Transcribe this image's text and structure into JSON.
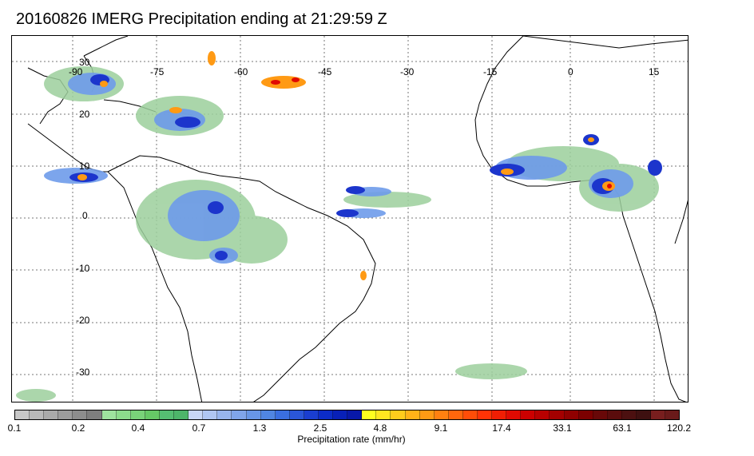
{
  "title": "20160826 IMERG Precipitation ending at 21:29:59 Z",
  "map": {
    "longitude_labels": [
      "-90",
      "-75",
      "-60",
      "-45",
      "-30",
      "-15",
      "0",
      "15"
    ],
    "latitude_labels": [
      "30",
      "20",
      "10",
      "0",
      "-10",
      "-20",
      "-30"
    ],
    "gridlines": "dotted"
  },
  "colorbar": {
    "tick_labels": [
      "0.1",
      "0.2",
      "0.4",
      "0.7",
      "1.3",
      "2.5",
      "4.8",
      "9.1",
      "17.4",
      "33.1",
      "63.1",
      "120.2"
    ],
    "label": "Precipitation rate (mm/hr)",
    "colors": [
      "#c8c8c8",
      "#b9b9b9",
      "#aaaaaa",
      "#9c9c9c",
      "#8d8d8d",
      "#7e7e7e",
      "#9ee39e",
      "#8cdc8c",
      "#79d379",
      "#66c966",
      "#55be72",
      "#4db56a",
      "#c8d6f6",
      "#b0c6f2",
      "#98b5ee",
      "#80a5ea",
      "#6896e6",
      "#5086e2",
      "#3a6fe0",
      "#2a56d9",
      "#1a3ed0",
      "#0c2cc8",
      "#0820b8",
      "#0818a8",
      "#ffff20",
      "#ffe620",
      "#ffcc1c",
      "#ffb318",
      "#ff9a14",
      "#ff8010",
      "#ff660c",
      "#ff4d08",
      "#ff3306",
      "#f01e04",
      "#e00a02",
      "#cc0000",
      "#b80000",
      "#a40000",
      "#900000",
      "#7c0000",
      "#680808",
      "#5a0c0c",
      "#4c1010",
      "#3e1010",
      "#781e1e",
      "#6a1a1a"
    ]
  }
}
